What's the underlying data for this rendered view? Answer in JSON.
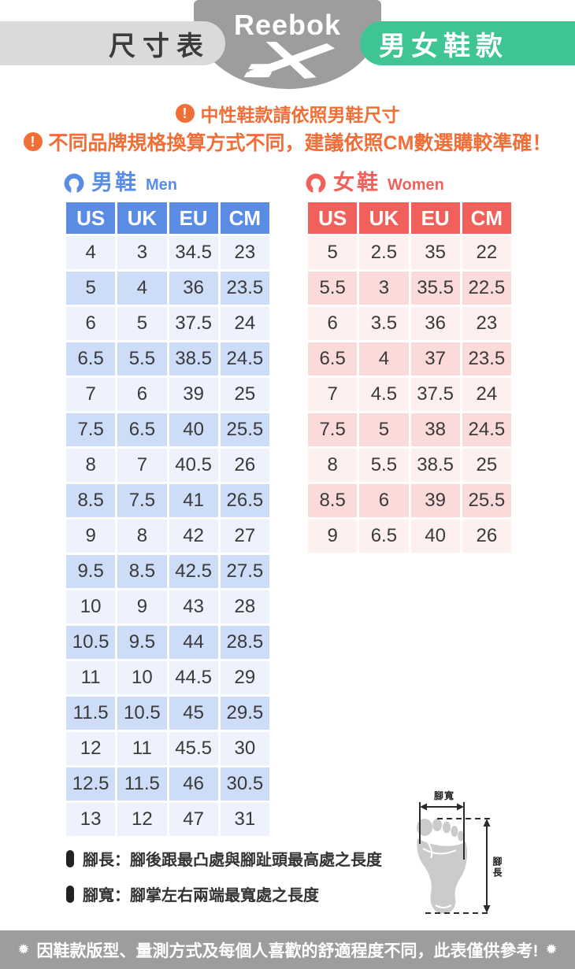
{
  "colors": {
    "accent_blue": "#5B8CE4",
    "blue_row_light": "#EDF2FC",
    "blue_row_dark": "#CDDCF7",
    "accent_red": "#F0615C",
    "red_row_light": "#FDF0EF",
    "red_row_dark": "#FBDBDA",
    "accent_orange": "#F26E37",
    "accent_green": "#3FC494",
    "gray": "#9D9D9D",
    "badge_gray": "#DADADA",
    "text_dark": "#3A3A3A",
    "foot_gray": "#CBCBCB"
  },
  "header": {
    "left_badge": "尺寸表",
    "brand": "Reebok",
    "right_badge": "男女鞋款"
  },
  "notices": {
    "icon_glyph": "!",
    "lines": [
      "中性鞋款請依照男鞋尺寸",
      "不同品牌規格換算方式不同，建議依照CM數選購較準確！"
    ]
  },
  "tables": {
    "men": {
      "title_zh": "男鞋",
      "title_en": "Men",
      "columns": [
        "US",
        "UK",
        "EU",
        "CM"
      ],
      "rows": [
        [
          "4",
          "3",
          "34.5",
          "23"
        ],
        [
          "5",
          "4",
          "36",
          "23.5"
        ],
        [
          "6",
          "5",
          "37.5",
          "24"
        ],
        [
          "6.5",
          "5.5",
          "38.5",
          "24.5"
        ],
        [
          "7",
          "6",
          "39",
          "25"
        ],
        [
          "7.5",
          "6.5",
          "40",
          "25.5"
        ],
        [
          "8",
          "7",
          "40.5",
          "26"
        ],
        [
          "8.5",
          "7.5",
          "41",
          "26.5"
        ],
        [
          "9",
          "8",
          "42",
          "27"
        ],
        [
          "9.5",
          "8.5",
          "42.5",
          "27.5"
        ],
        [
          "10",
          "9",
          "43",
          "28"
        ],
        [
          "10.5",
          "9.5",
          "44",
          "28.5"
        ],
        [
          "11",
          "10",
          "44.5",
          "29"
        ],
        [
          "11.5",
          "10.5",
          "45",
          "29.5"
        ],
        [
          "12",
          "11",
          "45.5",
          "30"
        ],
        [
          "12.5",
          "11.5",
          "46",
          "30.5"
        ],
        [
          "13",
          "12",
          "47",
          "31"
        ]
      ]
    },
    "women": {
      "title_zh": "女鞋",
      "title_en": "Women",
      "columns": [
        "US",
        "UK",
        "EU",
        "CM"
      ],
      "rows": [
        [
          "5",
          "2.5",
          "35",
          "22"
        ],
        [
          "5.5",
          "3",
          "35.5",
          "22.5"
        ],
        [
          "6",
          "3.5",
          "36",
          "23"
        ],
        [
          "6.5",
          "4",
          "37",
          "23.5"
        ],
        [
          "7",
          "4.5",
          "37.5",
          "24"
        ],
        [
          "7.5",
          "5",
          "38",
          "24.5"
        ],
        [
          "8",
          "5.5",
          "38.5",
          "25"
        ],
        [
          "8.5",
          "6",
          "39",
          "25.5"
        ],
        [
          "9",
          "6.5",
          "40",
          "26"
        ]
      ]
    }
  },
  "legend": {
    "notes": [
      "腳長：腳後跟最凸處與腳趾頭最高處之長度",
      "腳寬：腳掌左右兩端最寬處之長度"
    ],
    "diagram": {
      "width_label": "腳寬",
      "length_label": "腳長"
    }
  },
  "footer": {
    "star": "✹",
    "text": "因鞋款版型、量測方式及每個人喜歡的舒適程度不同，此表僅供參考!"
  },
  "chart_data": [
    {
      "type": "table",
      "title": "男鞋 Men",
      "columns": [
        "US",
        "UK",
        "EU",
        "CM"
      ],
      "rows": [
        [
          4,
          3,
          34.5,
          23
        ],
        [
          5,
          4,
          36,
          23.5
        ],
        [
          6,
          5,
          37.5,
          24
        ],
        [
          6.5,
          5.5,
          38.5,
          24.5
        ],
        [
          7,
          6,
          39,
          25
        ],
        [
          7.5,
          6.5,
          40,
          25.5
        ],
        [
          8,
          7,
          40.5,
          26
        ],
        [
          8.5,
          7.5,
          41,
          26.5
        ],
        [
          9,
          8,
          42,
          27
        ],
        [
          9.5,
          8.5,
          42.5,
          27.5
        ],
        [
          10,
          9,
          43,
          28
        ],
        [
          10.5,
          9.5,
          44,
          28.5
        ],
        [
          11,
          10,
          44.5,
          29
        ],
        [
          11.5,
          10.5,
          45,
          29.5
        ],
        [
          12,
          11,
          45.5,
          30
        ],
        [
          12.5,
          11.5,
          46,
          30.5
        ],
        [
          13,
          12,
          47,
          31
        ]
      ]
    },
    {
      "type": "table",
      "title": "女鞋 Women",
      "columns": [
        "US",
        "UK",
        "EU",
        "CM"
      ],
      "rows": [
        [
          5,
          2.5,
          35,
          22
        ],
        [
          5.5,
          3,
          35.5,
          22.5
        ],
        [
          6,
          3.5,
          36,
          23
        ],
        [
          6.5,
          4,
          37,
          23.5
        ],
        [
          7,
          4.5,
          37.5,
          24
        ],
        [
          7.5,
          5,
          38,
          24.5
        ],
        [
          8,
          5.5,
          38.5,
          25
        ],
        [
          8.5,
          6,
          39,
          25.5
        ],
        [
          9,
          6.5,
          40,
          26
        ]
      ]
    }
  ]
}
